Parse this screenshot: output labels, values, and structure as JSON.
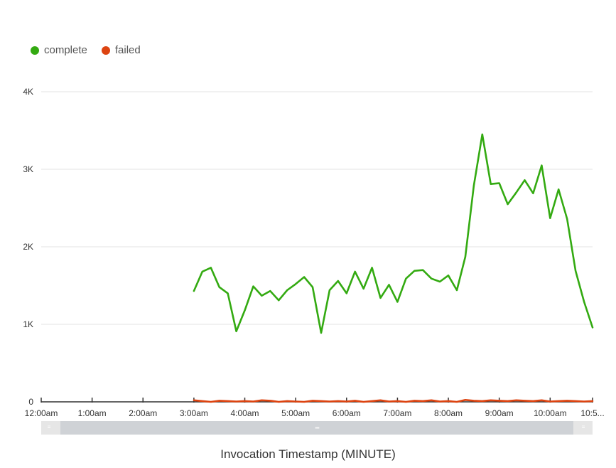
{
  "legend": [
    {
      "name": "complete",
      "color": "#33aa11"
    },
    {
      "name": "failed",
      "color": "#dd4411"
    }
  ],
  "xaxis_title": "Invocation Timestamp (MINUTE)",
  "chart_data": {
    "type": "line",
    "xlabel": "Invocation Timestamp (MINUTE)",
    "ylabel": "",
    "ylim": [
      0,
      4000
    ],
    "yticks": [
      0,
      1000,
      2000,
      3000,
      4000
    ],
    "ytick_labels": [
      "0",
      "1K",
      "2K",
      "3K",
      "4K"
    ],
    "xlim": [
      "12:00am",
      "10:50am"
    ],
    "xtick_labels": [
      "12:00am",
      "1:00am",
      "2:00am",
      "3:00am",
      "4:00am",
      "5:00am",
      "6:00am",
      "7:00am",
      "8:00am",
      "9:00am",
      "10:00am",
      "10:5..."
    ],
    "grid": true,
    "legend_position": "top-left",
    "series": [
      {
        "name": "complete",
        "color": "#33aa11",
        "x": [
          "3:00am",
          "3:10am",
          "3:20am",
          "3:30am",
          "3:40am",
          "3:50am",
          "4:00am",
          "4:10am",
          "4:20am",
          "4:30am",
          "4:40am",
          "4:50am",
          "5:00am",
          "5:10am",
          "5:20am",
          "5:30am",
          "5:40am",
          "5:50am",
          "6:00am",
          "6:10am",
          "6:20am",
          "6:30am",
          "6:40am",
          "6:50am",
          "7:00am",
          "7:10am",
          "7:20am",
          "7:30am",
          "7:40am",
          "7:50am",
          "8:00am",
          "8:10am",
          "8:20am",
          "8:30am",
          "8:40am",
          "8:50am",
          "9:00am",
          "9:10am",
          "9:20am",
          "9:30am",
          "9:40am",
          "9:50am",
          "10:00am",
          "10:10am",
          "10:20am",
          "10:30am",
          "10:40am",
          "10:50am"
        ],
        "values": [
          1430,
          1680,
          1730,
          1480,
          1400,
          910,
          1180,
          1490,
          1370,
          1430,
          1310,
          1440,
          1520,
          1610,
          1480,
          890,
          1440,
          1560,
          1400,
          1680,
          1460,
          1730,
          1340,
          1510,
          1290,
          1590,
          1690,
          1700,
          1590,
          1550,
          1630,
          1440,
          1870,
          2790,
          3450,
          2810,
          2820,
          2550,
          2700,
          2860,
          2690,
          3050,
          2370,
          2740,
          2360,
          1690,
          1290,
          960
        ]
      },
      {
        "name": "failed",
        "color": "#dd4411",
        "x": [
          "3:00am",
          "3:10am",
          "3:20am",
          "3:30am",
          "3:40am",
          "3:50am",
          "4:00am",
          "4:10am",
          "4:20am",
          "4:30am",
          "4:40am",
          "4:50am",
          "5:00am",
          "5:10am",
          "5:20am",
          "5:30am",
          "5:40am",
          "5:50am",
          "6:00am",
          "6:10am",
          "6:20am",
          "6:30am",
          "6:40am",
          "6:50am",
          "7:00am",
          "7:10am",
          "7:20am",
          "7:30am",
          "7:40am",
          "7:50am",
          "8:00am",
          "8:10am",
          "8:20am",
          "8:30am",
          "8:40am",
          "8:50am",
          "9:00am",
          "9:10am",
          "9:20am",
          "9:30am",
          "9:40am",
          "9:50am",
          "10:00am",
          "10:10am",
          "10:20am",
          "10:30am",
          "10:40am",
          "10:50am"
        ],
        "values": [
          20,
          10,
          0,
          15,
          10,
          5,
          10,
          5,
          20,
          15,
          0,
          10,
          5,
          0,
          15,
          10,
          5,
          10,
          5,
          15,
          0,
          10,
          20,
          5,
          10,
          0,
          15,
          10,
          20,
          5,
          10,
          0,
          25,
          15,
          10,
          20,
          15,
          10,
          20,
          15,
          10,
          20,
          5,
          10,
          15,
          10,
          5,
          10
        ]
      }
    ]
  }
}
